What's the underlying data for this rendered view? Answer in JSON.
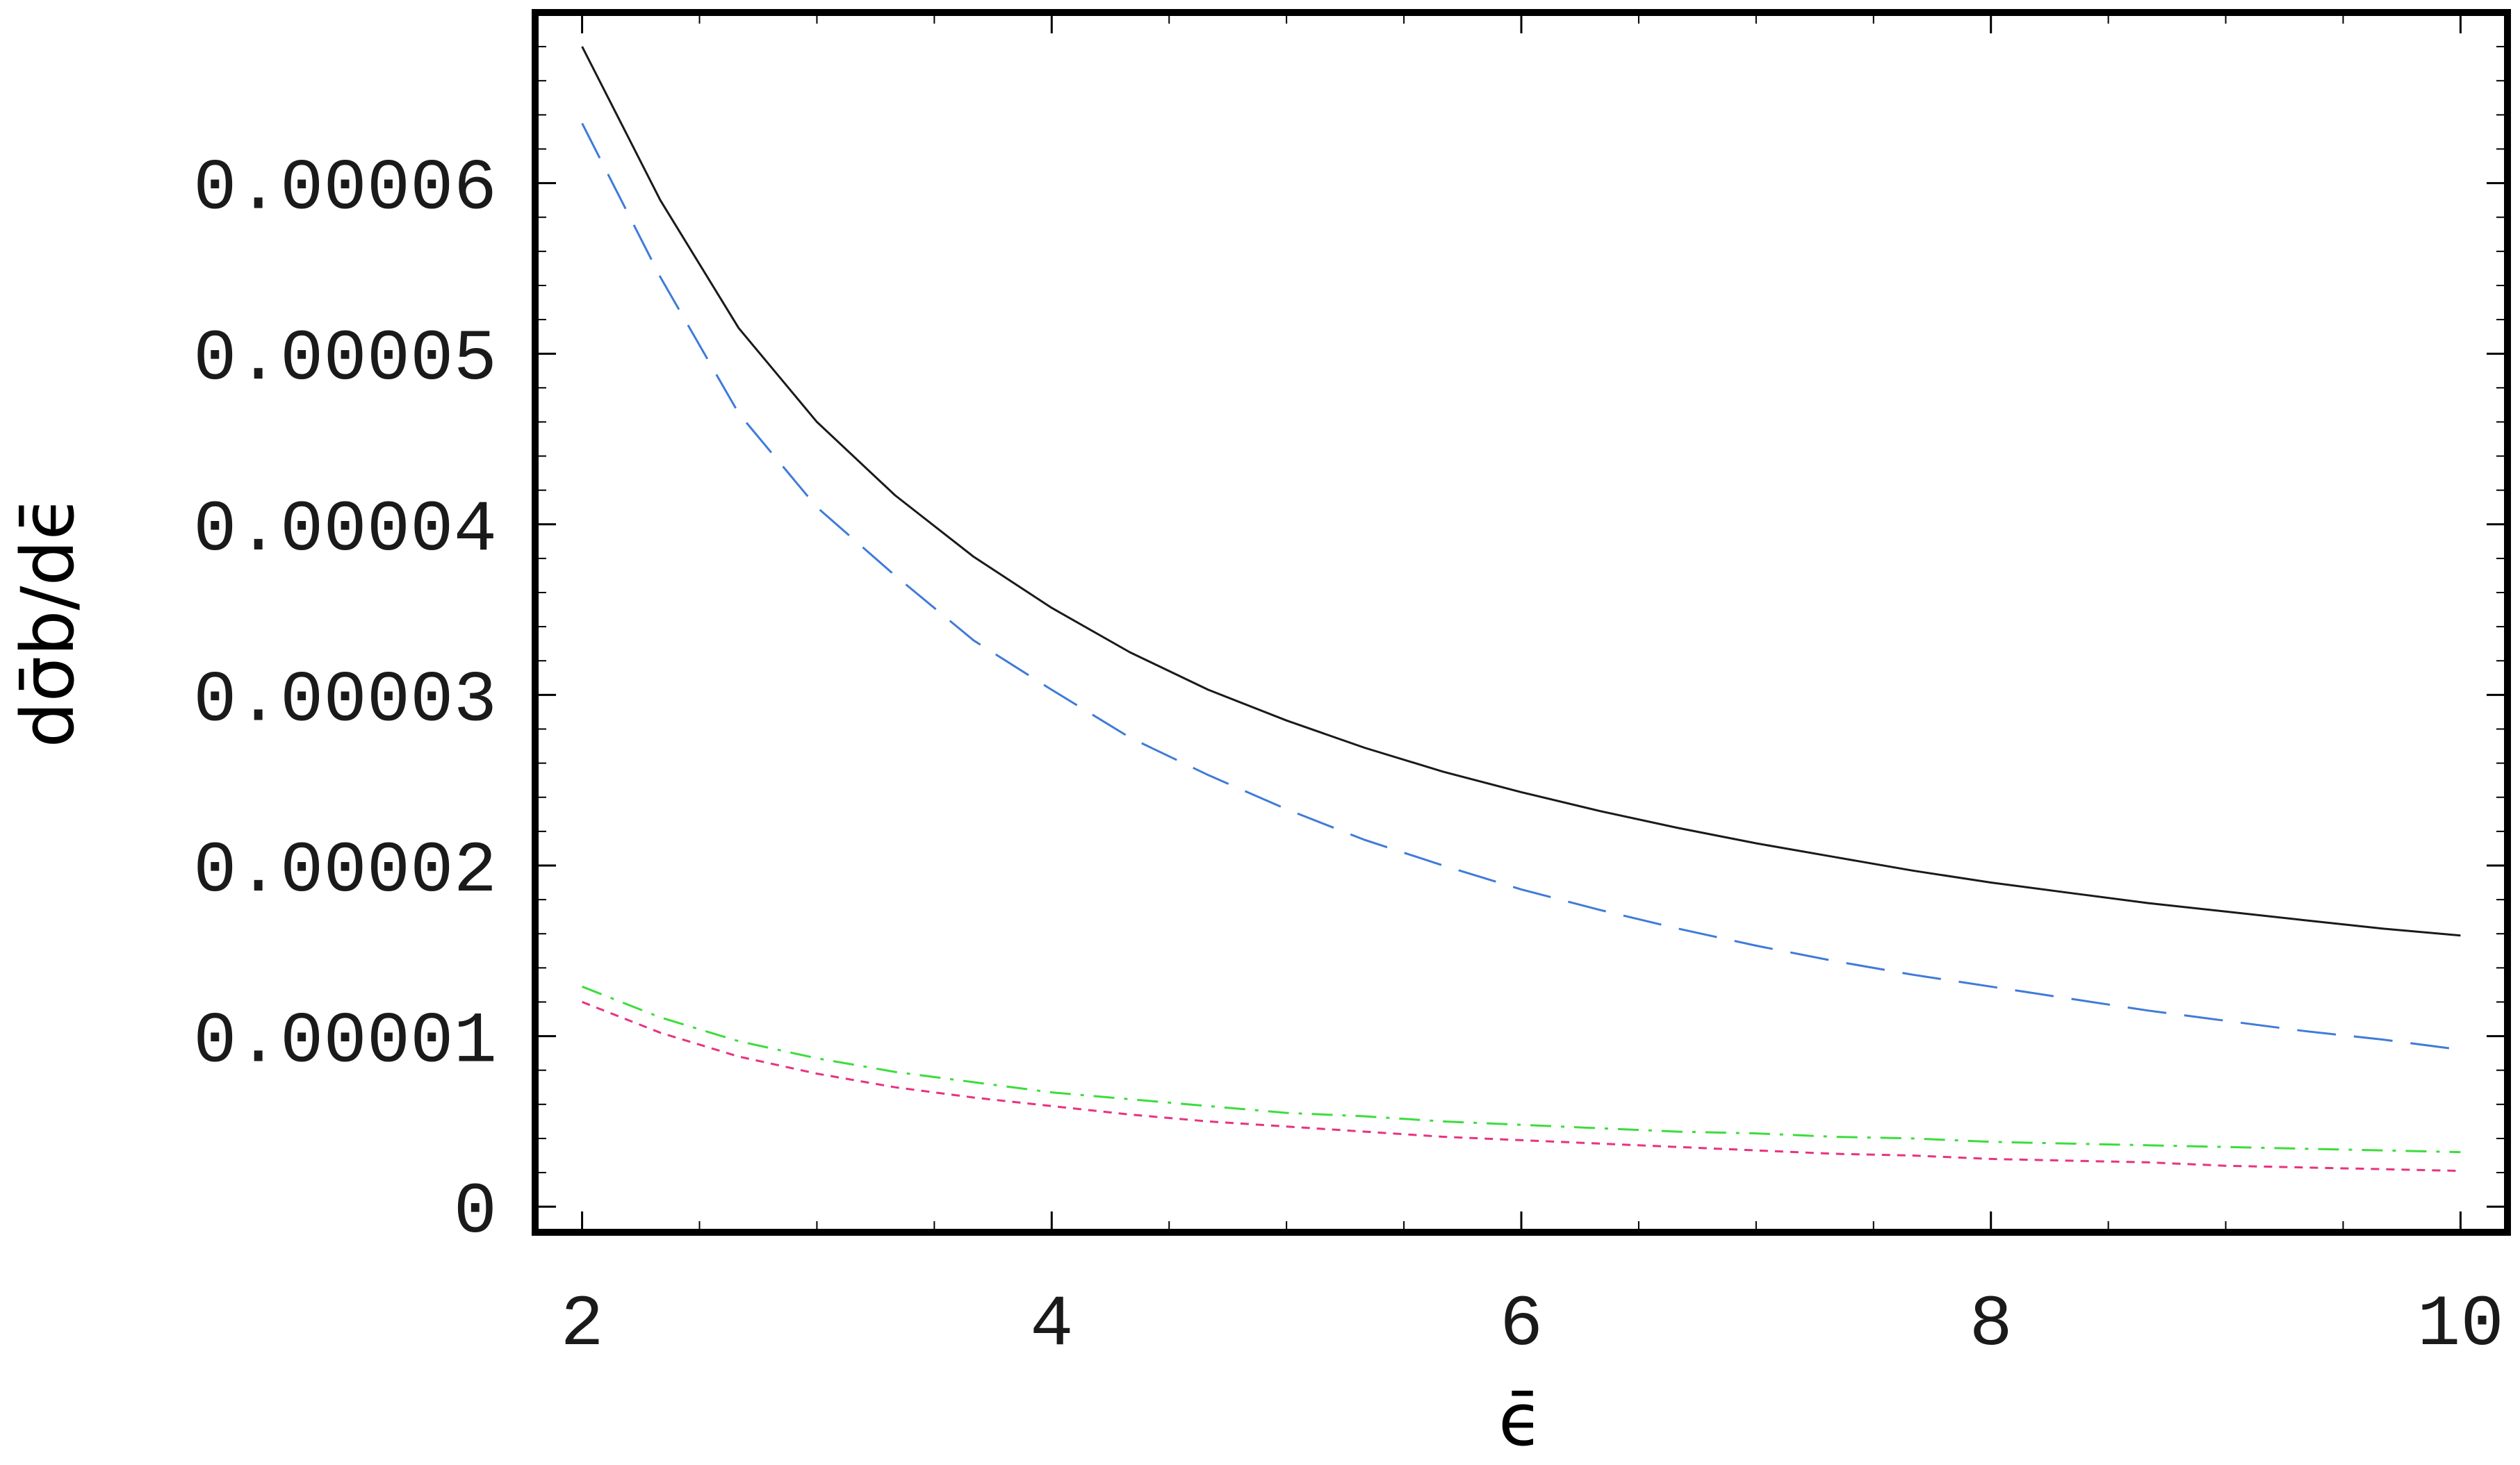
{
  "chart_data": {
    "type": "line",
    "title": "",
    "xlabel": "ϵ̄",
    "ylabel": "dσ̄b/dϵ̄",
    "xlim": [
      1.8,
      10.2
    ],
    "ylim": [
      -1.5e-06,
      7e-05
    ],
    "grid": false,
    "legend": "none",
    "x_ticks": [
      {
        "value": 2,
        "label": "2"
      },
      {
        "value": 4,
        "label": "4"
      },
      {
        "value": 6,
        "label": "6"
      },
      {
        "value": 8,
        "label": "8"
      },
      {
        "value": 10,
        "label": "10"
      }
    ],
    "y_ticks": [
      {
        "value": 0,
        "label": "0"
      },
      {
        "value": 1e-05,
        "label": "0.00001"
      },
      {
        "value": 2e-05,
        "label": "0.00002"
      },
      {
        "value": 3e-05,
        "label": "0.00003"
      },
      {
        "value": 4e-05,
        "label": "0.00004"
      },
      {
        "value": 5e-05,
        "label": "0.00005"
      },
      {
        "value": 6e-05,
        "label": "0.00006"
      }
    ],
    "x": [
      2,
      2.333,
      2.667,
      3,
      3.333,
      3.667,
      4,
      4.333,
      4.667,
      5,
      5.333,
      5.667,
      6,
      6.333,
      6.667,
      7,
      7.333,
      7.667,
      8,
      8.333,
      8.667,
      9,
      9.333,
      9.667,
      10
    ],
    "series": [
      {
        "color": "#1a1a1a",
        "dash": "solid",
        "values": [
          6.8e-05,
          5.9e-05,
          5.15e-05,
          4.6e-05,
          4.17e-05,
          3.81e-05,
          3.51e-05,
          3.25e-05,
          3.03e-05,
          2.85e-05,
          2.69e-05,
          2.55e-05,
          2.43e-05,
          2.32e-05,
          2.22e-05,
          2.13e-05,
          2.05e-05,
          1.97e-05,
          1.9e-05,
          1.84e-05,
          1.78e-05,
          1.73e-05,
          1.68e-05,
          1.63e-05,
          1.59e-05
        ]
      },
      {
        "color": "#3f7bd9",
        "dash": "long-dash",
        "values": [
          6.35e-05,
          5.45e-05,
          4.65e-05,
          4.1e-05,
          3.7e-05,
          3.32e-05,
          3.03e-05,
          2.75e-05,
          2.53e-05,
          2.33e-05,
          2.15e-05,
          2e-05,
          1.86e-05,
          1.74e-05,
          1.63e-05,
          1.53e-05,
          1.44e-05,
          1.36e-05,
          1.29e-05,
          1.22e-05,
          1.15e-05,
          1.09e-05,
          1.03e-05,
          9.8e-06,
          9.2e-06
        ]
      },
      {
        "color": "#3ddc3d",
        "dash": "dash-dot",
        "values": [
          1.29e-05,
          1.11e-05,
          9.7e-06,
          8.7e-06,
          7.9e-06,
          7.3e-06,
          6.7e-06,
          6.3e-06,
          5.9e-06,
          5.5e-06,
          5.3e-06,
          5e-06,
          4.8e-06,
          4.6e-06,
          4.4e-06,
          4.3e-06,
          4.1e-06,
          4e-06,
          3.8e-06,
          3.7e-06,
          3.6e-06,
          3.5e-06,
          3.4e-06,
          3.3e-06,
          3.2e-06
        ]
      },
      {
        "color": "#e8337f",
        "dash": "dotted",
        "values": [
          1.2e-05,
          1.02e-05,
          8.8e-06,
          7.8e-06,
          7e-06,
          6.4e-06,
          5.9e-06,
          5.4e-06,
          5e-06,
          4.7e-06,
          4.4e-06,
          4.1e-06,
          3.9e-06,
          3.7e-06,
          3.5e-06,
          3.3e-06,
          3.1e-06,
          3e-06,
          2.8e-06,
          2.7e-06,
          2.6e-06,
          2.4e-06,
          2.3e-06,
          2.2e-06,
          2.1e-06
        ]
      }
    ]
  }
}
